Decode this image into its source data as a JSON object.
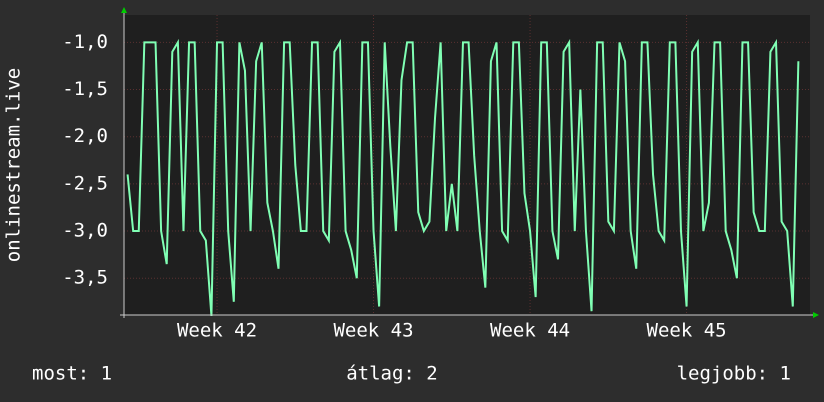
{
  "chart_data": {
    "type": "line",
    "y_label": "onlinestream.live",
    "color": "#80ffb4",
    "x": [
      -4,
      -3.75,
      -3.5,
      -3.25,
      -3,
      -2.75,
      -2.5,
      -2.25,
      -2,
      -1.75,
      -1.5,
      -1.25,
      -1,
      -0.75,
      -0.5,
      -0.25,
      0,
      0.25,
      0.5,
      0.75,
      1,
      1.25,
      1.5,
      1.75,
      2,
      2.25,
      2.5,
      2.75,
      3,
      3.25,
      3.5,
      3.75,
      4,
      4.25,
      4.5,
      4.75,
      5,
      5.25,
      5.5,
      5.75,
      6,
      6.25,
      6.5,
      6.75,
      7,
      7.25,
      7.5,
      7.75,
      8,
      8.25,
      8.5,
      8.75,
      9,
      9.25,
      9.5,
      9.75,
      10,
      10.25,
      10.5,
      10.75,
      11,
      11.25,
      11.5,
      11.75,
      12,
      12.25,
      12.5,
      12.75,
      13,
      13.25,
      13.5,
      13.75,
      14,
      14.25,
      14.5,
      14.75,
      15,
      15.25,
      15.5,
      15.75,
      16,
      16.25,
      16.5,
      16.75,
      17,
      17.25,
      17.5,
      17.75,
      18,
      18.25,
      18.5,
      18.75,
      19,
      19.25,
      19.5,
      19.75,
      20,
      20.25,
      20.5,
      20.75,
      21,
      21.25,
      21.5,
      21.75,
      22,
      22.25,
      22.5,
      22.75,
      23,
      23.25,
      23.5,
      23.75,
      24,
      24.25,
      24.5,
      24.75,
      25,
      25.25,
      25.5,
      25.75,
      26
    ],
    "values": [
      -2.4,
      -3,
      -3,
      -1,
      -1,
      -1,
      -3,
      -3.35,
      -1.1,
      -1,
      -3,
      -1,
      -1,
      -3,
      -3.1,
      -3.9,
      -1,
      -1,
      -3,
      -3.75,
      -1,
      -1.3,
      -3,
      -1.2,
      -1,
      -2.7,
      -3,
      -3.4,
      -1,
      -1,
      -2.3,
      -3,
      -3,
      -1,
      -1,
      -3,
      -3.1,
      -1.1,
      -1,
      -3,
      -3.2,
      -3.5,
      -1,
      -1,
      -3,
      -3.8,
      -1,
      -2.1,
      -3,
      -1.4,
      -1,
      -1,
      -2.8,
      -3,
      -2.9,
      -1.8,
      -1,
      -3,
      -2.5,
      -3,
      -1,
      -1,
      -2.2,
      -3,
      -3.6,
      -1.2,
      -1,
      -3,
      -3.1,
      -1,
      -1,
      -2.6,
      -3,
      -3.7,
      -1,
      -1,
      -3,
      -3.3,
      -1.1,
      -1,
      -3,
      -1.5,
      -3,
      -3.85,
      -1,
      -1,
      -2.9,
      -3,
      -1,
      -1.2,
      -3,
      -3.4,
      -1,
      -1,
      -2.4,
      -3,
      -3.1,
      -1,
      -1,
      -3,
      -3.8,
      -1.1,
      -1,
      -3,
      -2.7,
      -1,
      -1,
      -3,
      -3.2,
      -3.5,
      -1,
      -1,
      -2.8,
      -3,
      -3,
      -1.1,
      -1,
      -2.9,
      -3,
      -3.8,
      -1.2
    ],
    "xlim": [
      -4.16,
      26.52
    ],
    "xticks": [
      {
        "value": 0,
        "label": "Week 42"
      },
      {
        "value": 7,
        "label": "Week 43"
      },
      {
        "value": 14,
        "label": "Week 44"
      },
      {
        "value": 21,
        "label": "Week 45"
      }
    ],
    "ylim": [
      -3.89,
      -0.71
    ],
    "yticks": [
      {
        "value": -1,
        "label": "-1,0"
      },
      {
        "value": -1.5,
        "label": "-1,5"
      },
      {
        "value": -2,
        "label": "-2,0"
      },
      {
        "value": -2.5,
        "label": "-2,5"
      },
      {
        "value": -3,
        "label": "-3,0"
      },
      {
        "value": -3.5,
        "label": "-3,5"
      }
    ],
    "grid": true,
    "stats": [
      "most: 1",
      "átlag: 2",
      "legjobb: 1"
    ]
  }
}
